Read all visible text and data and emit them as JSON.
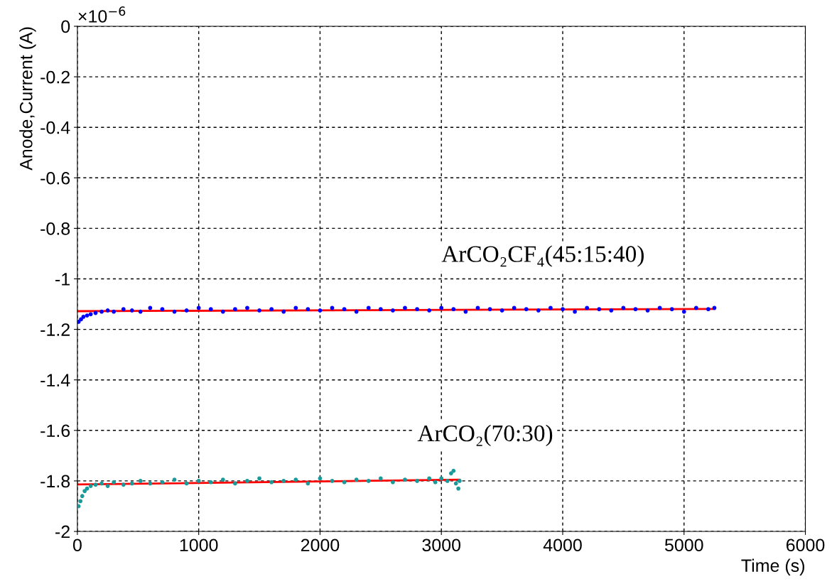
{
  "chart_data": {
    "type": "scatter",
    "xlabel": "Time (s)",
    "ylabel": "Anode,Current (A)",
    "xlim": [
      0,
      6000
    ],
    "xticks": [
      0,
      1000,
      2000,
      3000,
      4000,
      5000,
      6000
    ],
    "ylim": [
      -2,
      0
    ],
    "yticks": [
      {
        "value": -2,
        "label": "-2"
      },
      {
        "value": -1.8,
        "label": "-1.8"
      },
      {
        "value": -1.6,
        "label": "-1.6"
      },
      {
        "value": -1.4,
        "label": "-1.4"
      },
      {
        "value": -1.2,
        "label": "-1.2"
      },
      {
        "value": -1,
        "label": "-1"
      },
      {
        "value": -0.8,
        "label": "-0.8"
      },
      {
        "value": -0.6,
        "label": "-0.6"
      },
      {
        "value": -0.4,
        "label": "-0.4"
      },
      {
        "value": -0.2,
        "label": "-0.2"
      },
      {
        "value": 0,
        "label": "0"
      }
    ],
    "grid": true,
    "marker": "circle",
    "annotations": [
      "×10$^{−6}$",
      "ArCO₂CF₄(45:15:40)",
      "ArCO₂(70:30)"
    ],
    "series": [
      {
        "color": "#0000ff",
        "x": [
          10,
          30,
          50,
          80,
          110,
          150,
          200,
          250,
          300,
          380,
          450,
          520,
          600,
          700,
          800,
          900,
          1000,
          1100,
          1200,
          1300,
          1400,
          1500,
          1600,
          1700,
          1800,
          1900,
          2000,
          2100,
          2200,
          2300,
          2400,
          2500,
          2600,
          2700,
          2800,
          2900,
          3000,
          3100,
          3200,
          3300,
          3400,
          3500,
          3600,
          3700,
          3800,
          3900,
          4000,
          4100,
          4200,
          4300,
          4400,
          4500,
          4600,
          4700,
          4800,
          4900,
          5000,
          5100,
          5200,
          5250
        ],
        "values": [
          -1.17,
          -1.16,
          -1.15,
          -1.145,
          -1.14,
          -1.135,
          -1.13,
          -1.125,
          -1.13,
          -1.12,
          -1.125,
          -1.13,
          -1.115,
          -1.12,
          -1.13,
          -1.125,
          -1.115,
          -1.12,
          -1.13,
          -1.12,
          -1.115,
          -1.125,
          -1.12,
          -1.13,
          -1.115,
          -1.12,
          -1.125,
          -1.115,
          -1.12,
          -1.13,
          -1.115,
          -1.12,
          -1.125,
          -1.115,
          -1.12,
          -1.125,
          -1.115,
          -1.12,
          -1.13,
          -1.115,
          -1.12,
          -1.125,
          -1.115,
          -1.12,
          -1.125,
          -1.115,
          -1.12,
          -1.13,
          -1.115,
          -1.12,
          -1.125,
          -1.115,
          -1.12,
          -1.125,
          -1.115,
          -1.12,
          -1.13,
          -1.115,
          -1.12,
          -1.115
        ]
      },
      {
        "type": "line",
        "color": "#ff0000",
        "marker": "none",
        "x": [
          0,
          5250
        ],
        "values": [
          -1.128,
          -1.119
        ]
      },
      {
        "color": "#1a9a9a",
        "x": [
          10,
          25,
          40,
          60,
          80,
          110,
          150,
          200,
          250,
          300,
          380,
          450,
          520,
          600,
          700,
          800,
          900,
          1000,
          1100,
          1200,
          1300,
          1400,
          1500,
          1600,
          1700,
          1800,
          1900,
          2000,
          2100,
          2200,
          2300,
          2400,
          2500,
          2600,
          2700,
          2800,
          2900,
          2950,
          3000,
          3050,
          3080,
          3100,
          3120,
          3140,
          3150
        ],
        "values": [
          -1.9,
          -1.88,
          -1.86,
          -1.84,
          -1.83,
          -1.82,
          -1.815,
          -1.81,
          -1.82,
          -1.805,
          -1.815,
          -1.81,
          -1.8,
          -1.81,
          -1.805,
          -1.795,
          -1.81,
          -1.8,
          -1.805,
          -1.795,
          -1.81,
          -1.8,
          -1.79,
          -1.805,
          -1.8,
          -1.795,
          -1.81,
          -1.79,
          -1.8,
          -1.805,
          -1.795,
          -1.8,
          -1.79,
          -1.805,
          -1.795,
          -1.8,
          -1.79,
          -1.805,
          -1.79,
          -1.8,
          -1.77,
          -1.76,
          -1.81,
          -1.83,
          -1.8
        ]
      },
      {
        "type": "line",
        "color": "#ff0000",
        "marker": "none",
        "x": [
          0,
          3150
        ],
        "values": [
          -1.814,
          -1.795
        ]
      }
    ]
  }
}
